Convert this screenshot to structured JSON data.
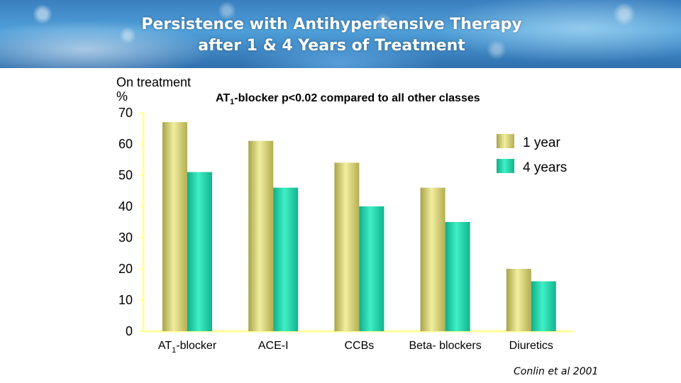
{
  "header": {
    "title_line1": "Persistence with Antihypertensive Therapy",
    "title_line2": "after 1 & 4 Years of Treatment"
  },
  "source": "Conlin et al 2001",
  "colors": {
    "series_1_year": "#d8d47a",
    "series_4_years": "#1ed8b0",
    "axis": "#ffff99"
  },
  "chart_data": {
    "type": "bar",
    "ylabel_line1": "On treatment",
    "ylabel_line2": "%",
    "annotation_prefix": "AT",
    "annotation_sub": "1",
    "annotation_rest": "-blocker p<0.02 compared to all other classes",
    "categories": [
      {
        "main": "AT",
        "sub": "1",
        "rest": "-blocker"
      },
      {
        "main": "ACE-I",
        "sub": "",
        "rest": ""
      },
      {
        "main": "CCBs",
        "sub": "",
        "rest": ""
      },
      {
        "main": "Beta- blockers",
        "sub": "",
        "rest": ""
      },
      {
        "main": "Diuretics",
        "sub": "",
        "rest": ""
      }
    ],
    "series": [
      {
        "name": "1 year",
        "values": [
          67,
          61,
          54,
          46,
          20
        ]
      },
      {
        "name": "4 years",
        "values": [
          51,
          46,
          40,
          35,
          16
        ]
      }
    ],
    "ylim": [
      0,
      70
    ],
    "yticks": [
      0,
      10,
      20,
      30,
      40,
      50,
      60,
      70
    ],
    "legend_position": "top-right",
    "grid": false
  }
}
